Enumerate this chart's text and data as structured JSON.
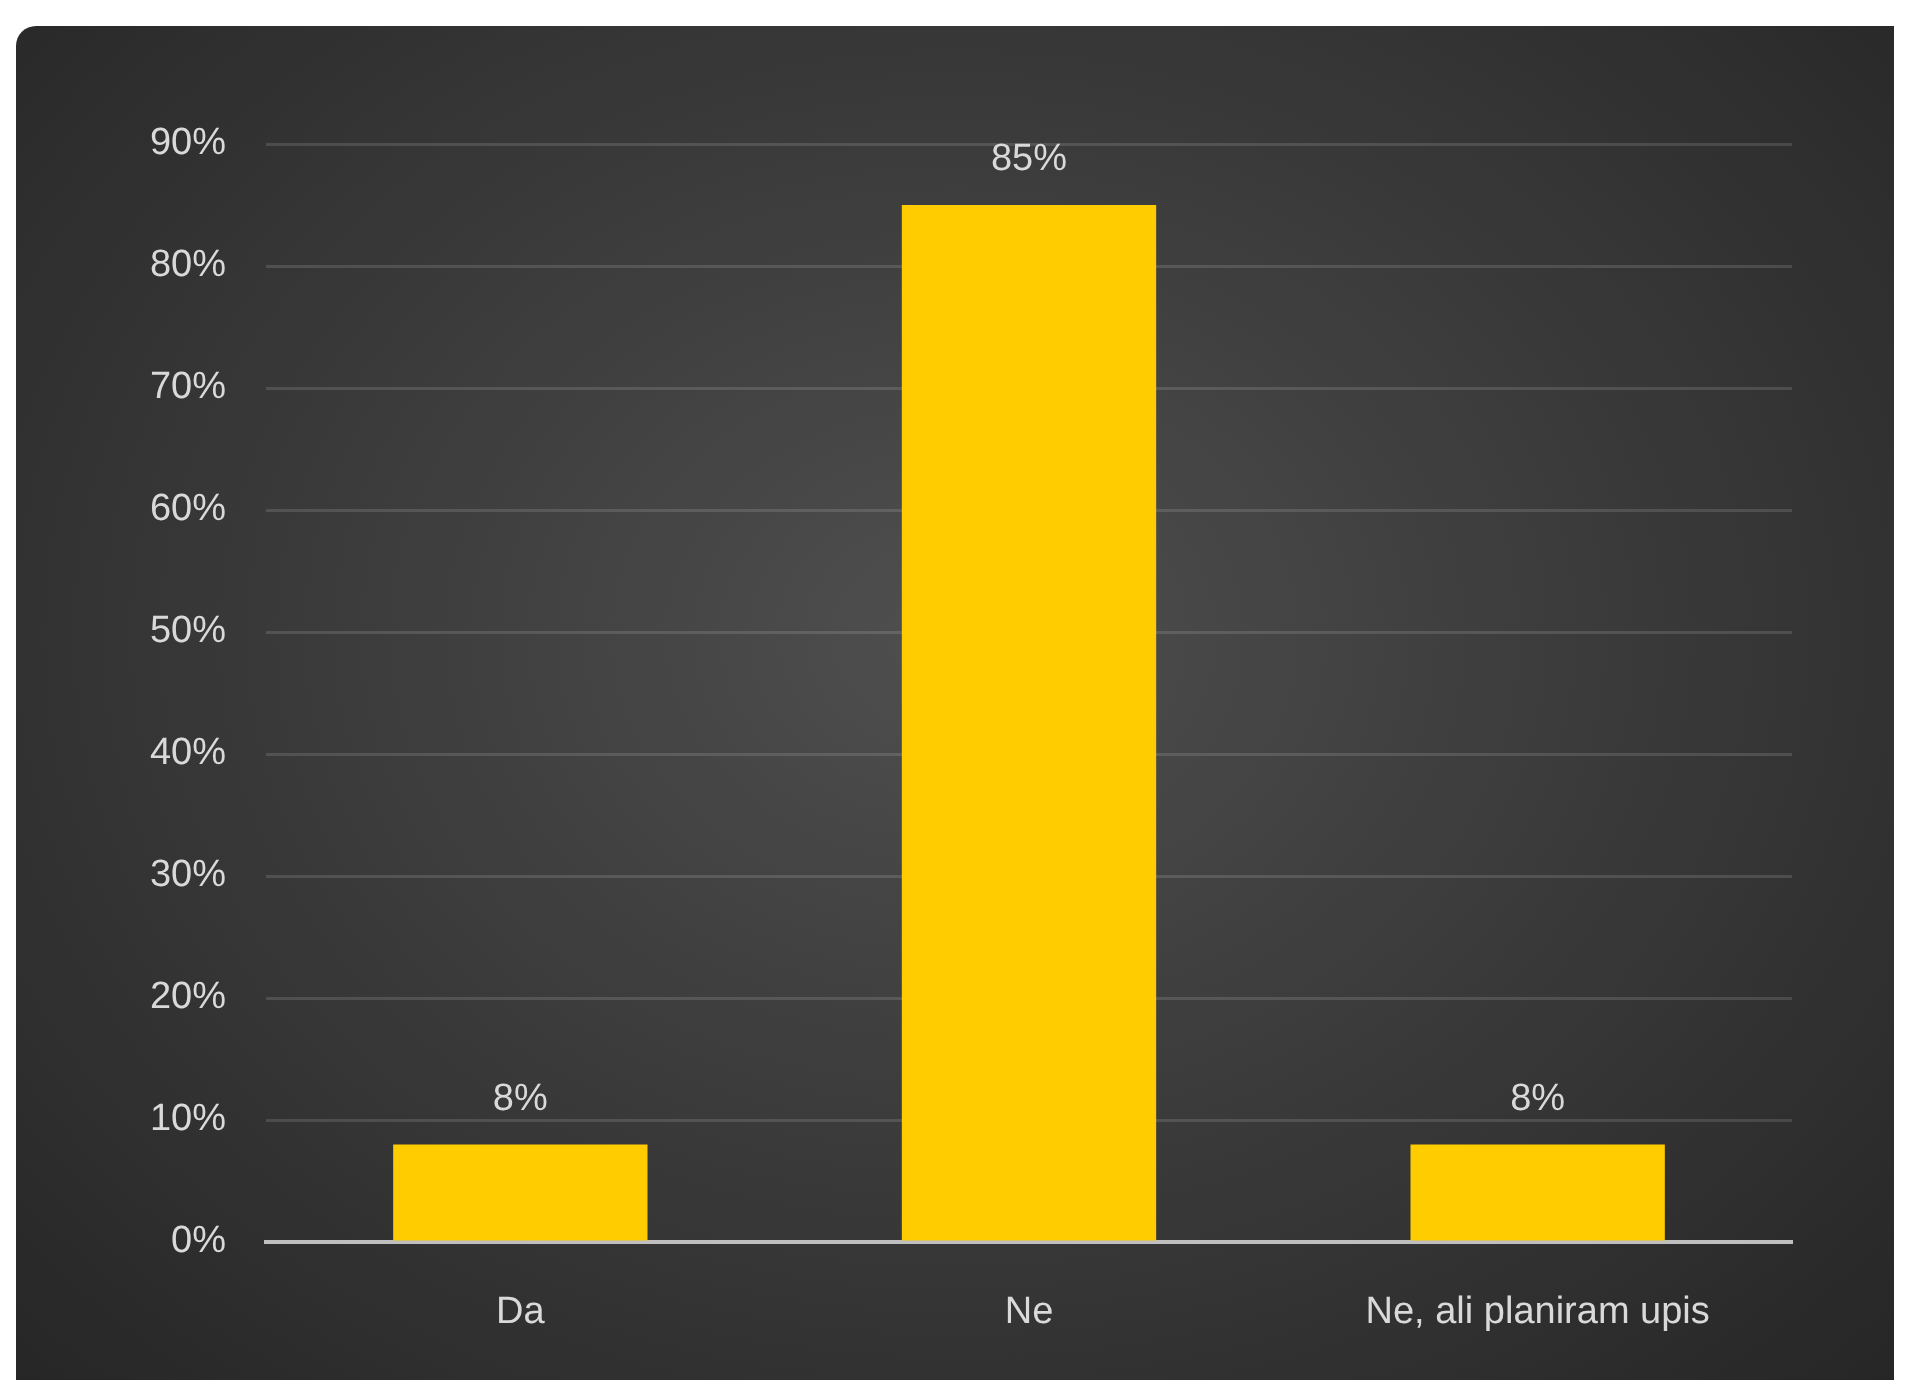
{
  "chart_data": {
    "type": "bar",
    "categories": [
      "Da",
      "Ne",
      "Ne, ali planiram upis"
    ],
    "values": [
      8,
      85,
      8
    ],
    "color": "#ffcc00",
    "value_labels": [
      "8%",
      "85%",
      "8%"
    ],
    "ylim": [
      0,
      90
    ],
    "yticks": [
      {
        "value": 0,
        "label": "0%"
      },
      {
        "value": 10,
        "label": "10%"
      },
      {
        "value": 20,
        "label": "20%"
      },
      {
        "value": 30,
        "label": "30%"
      },
      {
        "value": 40,
        "label": "40%"
      },
      {
        "value": 50,
        "label": "50%"
      },
      {
        "value": 60,
        "label": "60%"
      },
      {
        "value": 70,
        "label": "70%"
      },
      {
        "value": 80,
        "label": "80%"
      },
      {
        "value": 90,
        "label": "90%"
      }
    ],
    "grid": "y"
  }
}
